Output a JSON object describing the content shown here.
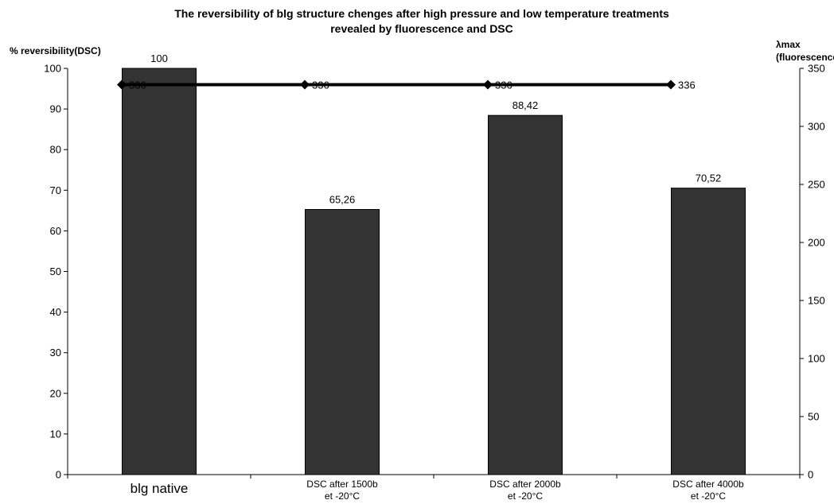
{
  "chart_data": {
    "type": "bar",
    "title_lines": [
      "The reversibility of blg structure chenges after high pressure and low temperature treatments",
      "revealed by fluorescence and DSC"
    ],
    "ylabel": "% reversibility(DSC)",
    "y2label_lines": [
      "λmax",
      "(fluorescence)"
    ],
    "categories": [
      [
        "blg native"
      ],
      [
        "DSC after 1500b",
        "et -20°C"
      ],
      [
        "DSC after 2000b",
        "et -20°C"
      ],
      [
        "DSC after 4000b",
        "et -20°C"
      ]
    ],
    "series": [
      {
        "values": [
          100,
          65.26,
          88.42,
          70.52
        ],
        "labels": [
          "100",
          "65,26",
          "88,42",
          "70,52"
        ],
        "axis": "left",
        "kind": "bar",
        "color": "#333333"
      },
      {
        "values": [
          336,
          336,
          336,
          336
        ],
        "labels": [
          "336",
          "336",
          "336",
          "336"
        ],
        "axis": "right",
        "kind": "line",
        "color": "#000000",
        "marker": "diamond"
      }
    ],
    "ylim": [
      0,
      100
    ],
    "yticks": [
      0,
      10,
      20,
      30,
      40,
      50,
      60,
      70,
      80,
      90,
      100
    ],
    "y2lim": [
      0,
      350
    ],
    "y2ticks": [
      0,
      50,
      100,
      150,
      200,
      250,
      300,
      350
    ],
    "grid": false,
    "legend": "none"
  }
}
